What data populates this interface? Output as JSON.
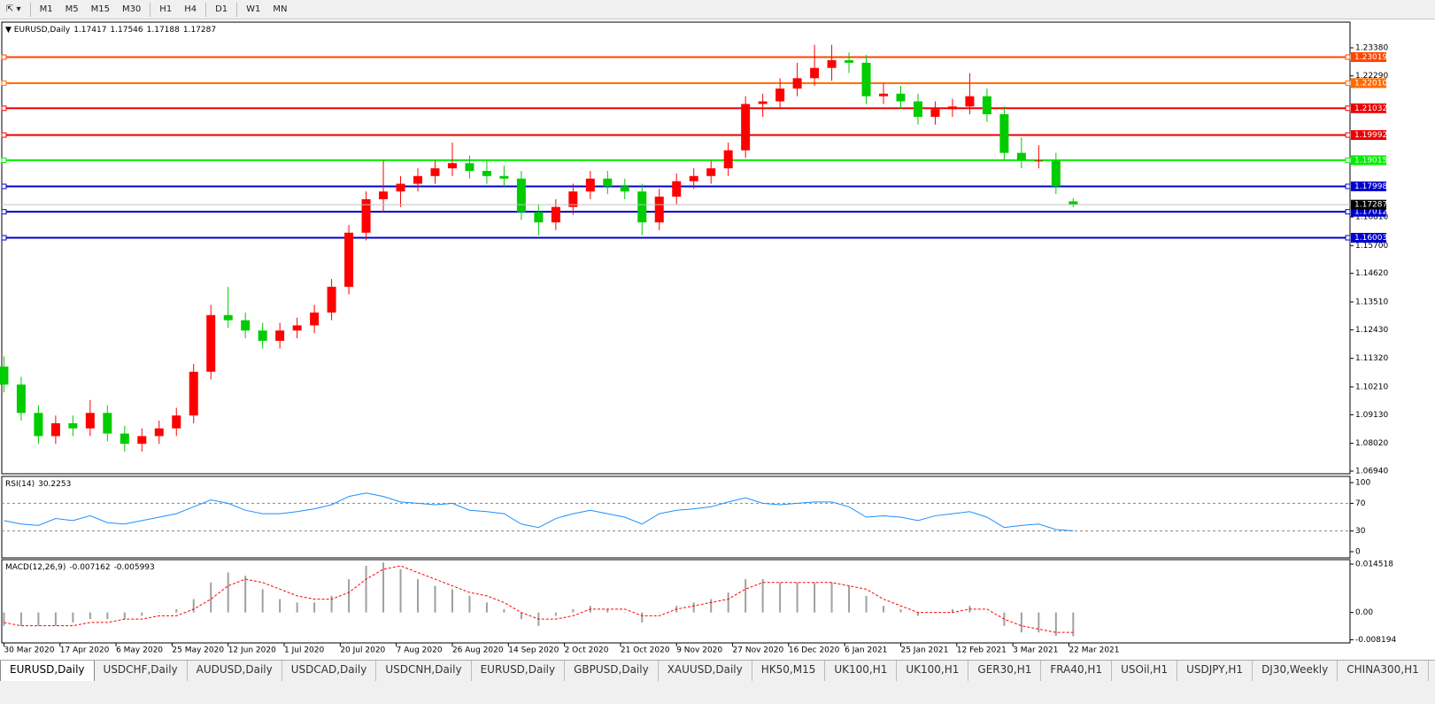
{
  "toolbar": {
    "timeframes": [
      "M1",
      "M5",
      "M15",
      "M30",
      "H1",
      "H4",
      "D1",
      "W1",
      "MN"
    ]
  },
  "chart_data": [
    {
      "type": "candlestick",
      "symbol": "EURUSD,Daily",
      "up_color": "#ff0000",
      "down_color": "#00cc00",
      "x": [
        0,
        4,
        8,
        12,
        16,
        20,
        24,
        28,
        32,
        36,
        40,
        44,
        48,
        52,
        56,
        60,
        64,
        68,
        72,
        76,
        80,
        84,
        88,
        92,
        96,
        100,
        104,
        108,
        112,
        116,
        120,
        124,
        128,
        132,
        136,
        140,
        144,
        148,
        152,
        156,
        160,
        164,
        168,
        172,
        176,
        180,
        184,
        188,
        192,
        196,
        200,
        204,
        208,
        212,
        216,
        220,
        224,
        228,
        232,
        236,
        240,
        244,
        248
      ],
      "ohlc": [
        [
          1.11,
          1.114,
          1.1,
          1.103
        ],
        [
          1.103,
          1.106,
          1.089,
          1.092
        ],
        [
          1.092,
          1.095,
          1.08,
          1.083
        ],
        [
          1.083,
          1.091,
          1.08,
          1.088
        ],
        [
          1.088,
          1.091,
          1.083,
          1.086
        ],
        [
          1.086,
          1.097,
          1.083,
          1.092
        ],
        [
          1.092,
          1.095,
          1.081,
          1.084
        ],
        [
          1.084,
          1.087,
          1.077,
          1.08
        ],
        [
          1.08,
          1.086,
          1.077,
          1.083
        ],
        [
          1.083,
          1.089,
          1.08,
          1.086
        ],
        [
          1.086,
          1.094,
          1.083,
          1.091
        ],
        [
          1.091,
          1.111,
          1.088,
          1.108
        ],
        [
          1.108,
          1.134,
          1.105,
          1.13
        ],
        [
          1.13,
          1.141,
          1.125,
          1.128
        ],
        [
          1.128,
          1.131,
          1.121,
          1.124
        ],
        [
          1.124,
          1.127,
          1.117,
          1.12
        ],
        [
          1.12,
          1.127,
          1.117,
          1.124
        ],
        [
          1.124,
          1.129,
          1.121,
          1.126
        ],
        [
          1.126,
          1.134,
          1.123,
          1.131
        ],
        [
          1.131,
          1.144,
          1.128,
          1.141
        ],
        [
          1.141,
          1.165,
          1.138,
          1.162
        ],
        [
          1.162,
          1.178,
          1.159,
          1.175
        ],
        [
          1.175,
          1.19,
          1.17,
          1.178
        ],
        [
          1.178,
          1.184,
          1.172,
          1.181
        ],
        [
          1.181,
          1.187,
          1.178,
          1.184
        ],
        [
          1.184,
          1.19,
          1.181,
          1.187
        ],
        [
          1.187,
          1.197,
          1.184,
          1.189
        ],
        [
          1.189,
          1.192,
          1.183,
          1.186
        ],
        [
          1.186,
          1.19,
          1.181,
          1.184
        ],
        [
          1.184,
          1.188,
          1.18,
          1.183
        ],
        [
          1.183,
          1.186,
          1.167,
          1.17
        ],
        [
          1.17,
          1.173,
          1.161,
          1.166
        ],
        [
          1.166,
          1.175,
          1.163,
          1.172
        ],
        [
          1.172,
          1.181,
          1.169,
          1.178
        ],
        [
          1.178,
          1.186,
          1.175,
          1.183
        ],
        [
          1.183,
          1.186,
          1.177,
          1.18
        ],
        [
          1.18,
          1.183,
          1.175,
          1.178
        ],
        [
          1.178,
          1.181,
          1.161,
          1.166
        ],
        [
          1.166,
          1.179,
          1.163,
          1.176
        ],
        [
          1.176,
          1.185,
          1.173,
          1.182
        ],
        [
          1.182,
          1.187,
          1.179,
          1.184
        ],
        [
          1.184,
          1.19,
          1.181,
          1.187
        ],
        [
          1.187,
          1.197,
          1.184,
          1.194
        ],
        [
          1.194,
          1.215,
          1.191,
          1.212
        ],
        [
          1.212,
          1.216,
          1.207,
          1.213
        ],
        [
          1.213,
          1.222,
          1.21,
          1.218
        ],
        [
          1.218,
          1.228,
          1.215,
          1.222
        ],
        [
          1.222,
          1.235,
          1.219,
          1.226
        ],
        [
          1.226,
          1.235,
          1.221,
          1.229
        ],
        [
          1.229,
          1.232,
          1.224,
          1.228
        ],
        [
          1.228,
          1.231,
          1.212,
          1.215
        ],
        [
          1.215,
          1.22,
          1.212,
          1.216
        ],
        [
          1.216,
          1.219,
          1.21,
          1.213
        ],
        [
          1.213,
          1.216,
          1.204,
          1.207
        ],
        [
          1.207,
          1.213,
          1.204,
          1.21
        ],
        [
          1.21,
          1.214,
          1.207,
          1.211
        ],
        [
          1.211,
          1.224,
          1.208,
          1.215
        ],
        [
          1.215,
          1.218,
          1.205,
          1.208
        ],
        [
          1.208,
          1.211,
          1.19,
          1.193
        ],
        [
          1.193,
          1.199,
          1.187,
          1.19
        ],
        [
          1.19,
          1.196,
          1.187,
          1.19
        ],
        [
          1.19,
          1.193,
          1.177,
          1.18
        ],
        [
          1.17417,
          1.17546,
          1.17188,
          1.17287
        ]
      ],
      "xlim": [
        -0.5,
        312.2
      ],
      "xticks": [
        {
          "value": 0,
          "label": "30 Mar 2020"
        },
        {
          "value": 13,
          "label": "17 Apr 2020"
        },
        {
          "value": 26,
          "label": "6 May 2020"
        },
        {
          "value": 39,
          "label": "25 May 2020"
        },
        {
          "value": 52,
          "label": "12 Jun 2020"
        },
        {
          "value": 65,
          "label": "1 Jul 2020"
        },
        {
          "value": 78,
          "label": "20 Jul 2020"
        },
        {
          "value": 91,
          "label": "7 Aug 2020"
        },
        {
          "value": 104,
          "label": "26 Aug 2020"
        },
        {
          "value": 117,
          "label": "14 Sep 2020"
        },
        {
          "value": 130,
          "label": "2 Oct 2020"
        },
        {
          "value": 143,
          "label": "21 Oct 2020"
        },
        {
          "value": 156,
          "label": "9 Nov 2020"
        },
        {
          "value": 169,
          "label": "27 Nov 2020"
        },
        {
          "value": 182,
          "label": "16 Dec 2020"
        },
        {
          "value": 195,
          "label": "6 Jan 2021"
        },
        {
          "value": 208,
          "label": "25 Jan 2021"
        },
        {
          "value": 221,
          "label": "12 Feb 2021"
        },
        {
          "value": 234,
          "label": "3 Mar 2021"
        },
        {
          "value": 247,
          "label": "22 Mar 2021"
        }
      ],
      "ylim": [
        1.06837,
        1.24378
      ],
      "yticks": [
        {
          "value": 1.2338,
          "label": "1.23380"
        },
        {
          "value": 1.2229,
          "label": "1.22290"
        },
        {
          "value": 1.1681,
          "label": "1.16810"
        },
        {
          "value": 1.157,
          "label": "1.15700"
        },
        {
          "value": 1.1462,
          "label": "1.14620"
        },
        {
          "value": 1.1351,
          "label": "1.13510"
        },
        {
          "value": 1.1243,
          "label": "1.12430"
        },
        {
          "value": 1.1132,
          "label": "1.11320"
        },
        {
          "value": 1.1021,
          "label": "1.10210"
        },
        {
          "value": 1.0913,
          "label": "1.09130"
        },
        {
          "value": 1.0802,
          "label": "1.08020"
        },
        {
          "value": 1.0694,
          "label": "1.06940"
        }
      ],
      "levels": [
        {
          "value": 1.23019,
          "label": "1.23019",
          "color": "#ff4500"
        },
        {
          "value": 1.2201,
          "label": "1.22010",
          "color": "#ff6a00"
        },
        {
          "value": 1.21032,
          "label": "1.21032",
          "color": "#ee0000"
        },
        {
          "value": 1.19992,
          "label": "1.19992",
          "color": "#ee0000"
        },
        {
          "value": 1.19015,
          "label": "1.19015",
          "color": "#00ee00"
        },
        {
          "value": 1.17998,
          "label": "1.17998",
          "color": "#0000cd"
        },
        {
          "value": 1.17012,
          "label": "1.17012",
          "color": "#0000cd"
        },
        {
          "value": 1.16003,
          "label": "1.16003",
          "color": "#0000cd"
        }
      ]
    },
    {
      "type": "line",
      "title": "RSI(14)",
      "color": "#1e90ff",
      "values": [
        45,
        40,
        38,
        48,
        45,
        52,
        42,
        40,
        45,
        50,
        55,
        65,
        75,
        70,
        60,
        55,
        55,
        58,
        62,
        68,
        80,
        85,
        80,
        72,
        70,
        68,
        70,
        60,
        58,
        55,
        40,
        35,
        48,
        55,
        60,
        55,
        50,
        40,
        55,
        60,
        62,
        65,
        72,
        78,
        70,
        68,
        70,
        72,
        72,
        65,
        50,
        52,
        50,
        45,
        52,
        55,
        58,
        50,
        35,
        38,
        40,
        32,
        30.2253
      ],
      "ylim": [
        -9,
        109
      ],
      "yticks": [
        100,
        70,
        30,
        0
      ],
      "levels": [
        70,
        30
      ]
    },
    {
      "type": "macd",
      "title": "MACD(12,26,9)",
      "histogram_color": "#a0a0a0",
      "signal_color": "#ff0000",
      "histogram": [
        -0.004,
        -0.004,
        -0.004,
        -0.004,
        -0.003,
        -0.002,
        -0.002,
        -0.002,
        -0.001,
        0.0,
        0.001,
        0.004,
        0.009,
        0.012,
        0.011,
        0.007,
        0.004,
        0.003,
        0.003,
        0.005,
        0.01,
        0.014,
        0.015,
        0.013,
        0.01,
        0.008,
        0.007,
        0.005,
        0.003,
        0.001,
        -0.002,
        -0.004,
        -0.001,
        0.001,
        0.002,
        0.001,
        0.0,
        -0.003,
        0.0,
        0.002,
        0.003,
        0.004,
        0.006,
        0.01,
        0.01,
        0.009,
        0.009,
        0.009,
        0.009,
        0.008,
        0.005,
        0.002,
        0.001,
        -0.001,
        0.0,
        0.001,
        0.002,
        0.0,
        -0.004,
        -0.006,
        -0.006,
        -0.007,
        -0.007162
      ],
      "signal": [
        -0.003,
        -0.004,
        -0.004,
        -0.004,
        -0.004,
        -0.003,
        -0.003,
        -0.002,
        -0.002,
        -0.001,
        -0.001,
        0.001,
        0.004,
        0.008,
        0.01,
        0.009,
        0.007,
        0.005,
        0.004,
        0.004,
        0.006,
        0.01,
        0.013,
        0.014,
        0.012,
        0.01,
        0.008,
        0.006,
        0.005,
        0.003,
        0.0,
        -0.002,
        -0.002,
        -0.001,
        0.001,
        0.001,
        0.001,
        -0.001,
        -0.001,
        0.001,
        0.002,
        0.003,
        0.004,
        0.007,
        0.009,
        0.009,
        0.009,
        0.009,
        0.009,
        0.008,
        0.007,
        0.004,
        0.002,
        0.0,
        0.0,
        0.0,
        0.001,
        0.001,
        -0.002,
        -0.004,
        -0.005,
        -0.006,
        -0.005993
      ],
      "ylim": [
        -0.00914,
        0.01586
      ],
      "yticks": [
        0.014518,
        {
          "value": 0,
          "label": "0.00"
        },
        -0.008194
      ]
    }
  ],
  "tabs": [
    "EURUSD,Daily",
    "USDCHF,Daily",
    "AUDUSD,Daily",
    "USDCAD,Daily",
    "USDCNH,Daily",
    "EURUSD,Daily",
    "GBPUSD,Daily",
    "XAUUSD,Daily",
    "HK50,M15",
    "UK100,H1",
    "UK100,H1",
    "GER30,H1",
    "FRA40,H1",
    "USOil,H1",
    "USDJPY,H1",
    "DJ30,Weekly",
    "CHINA300,H1"
  ]
}
